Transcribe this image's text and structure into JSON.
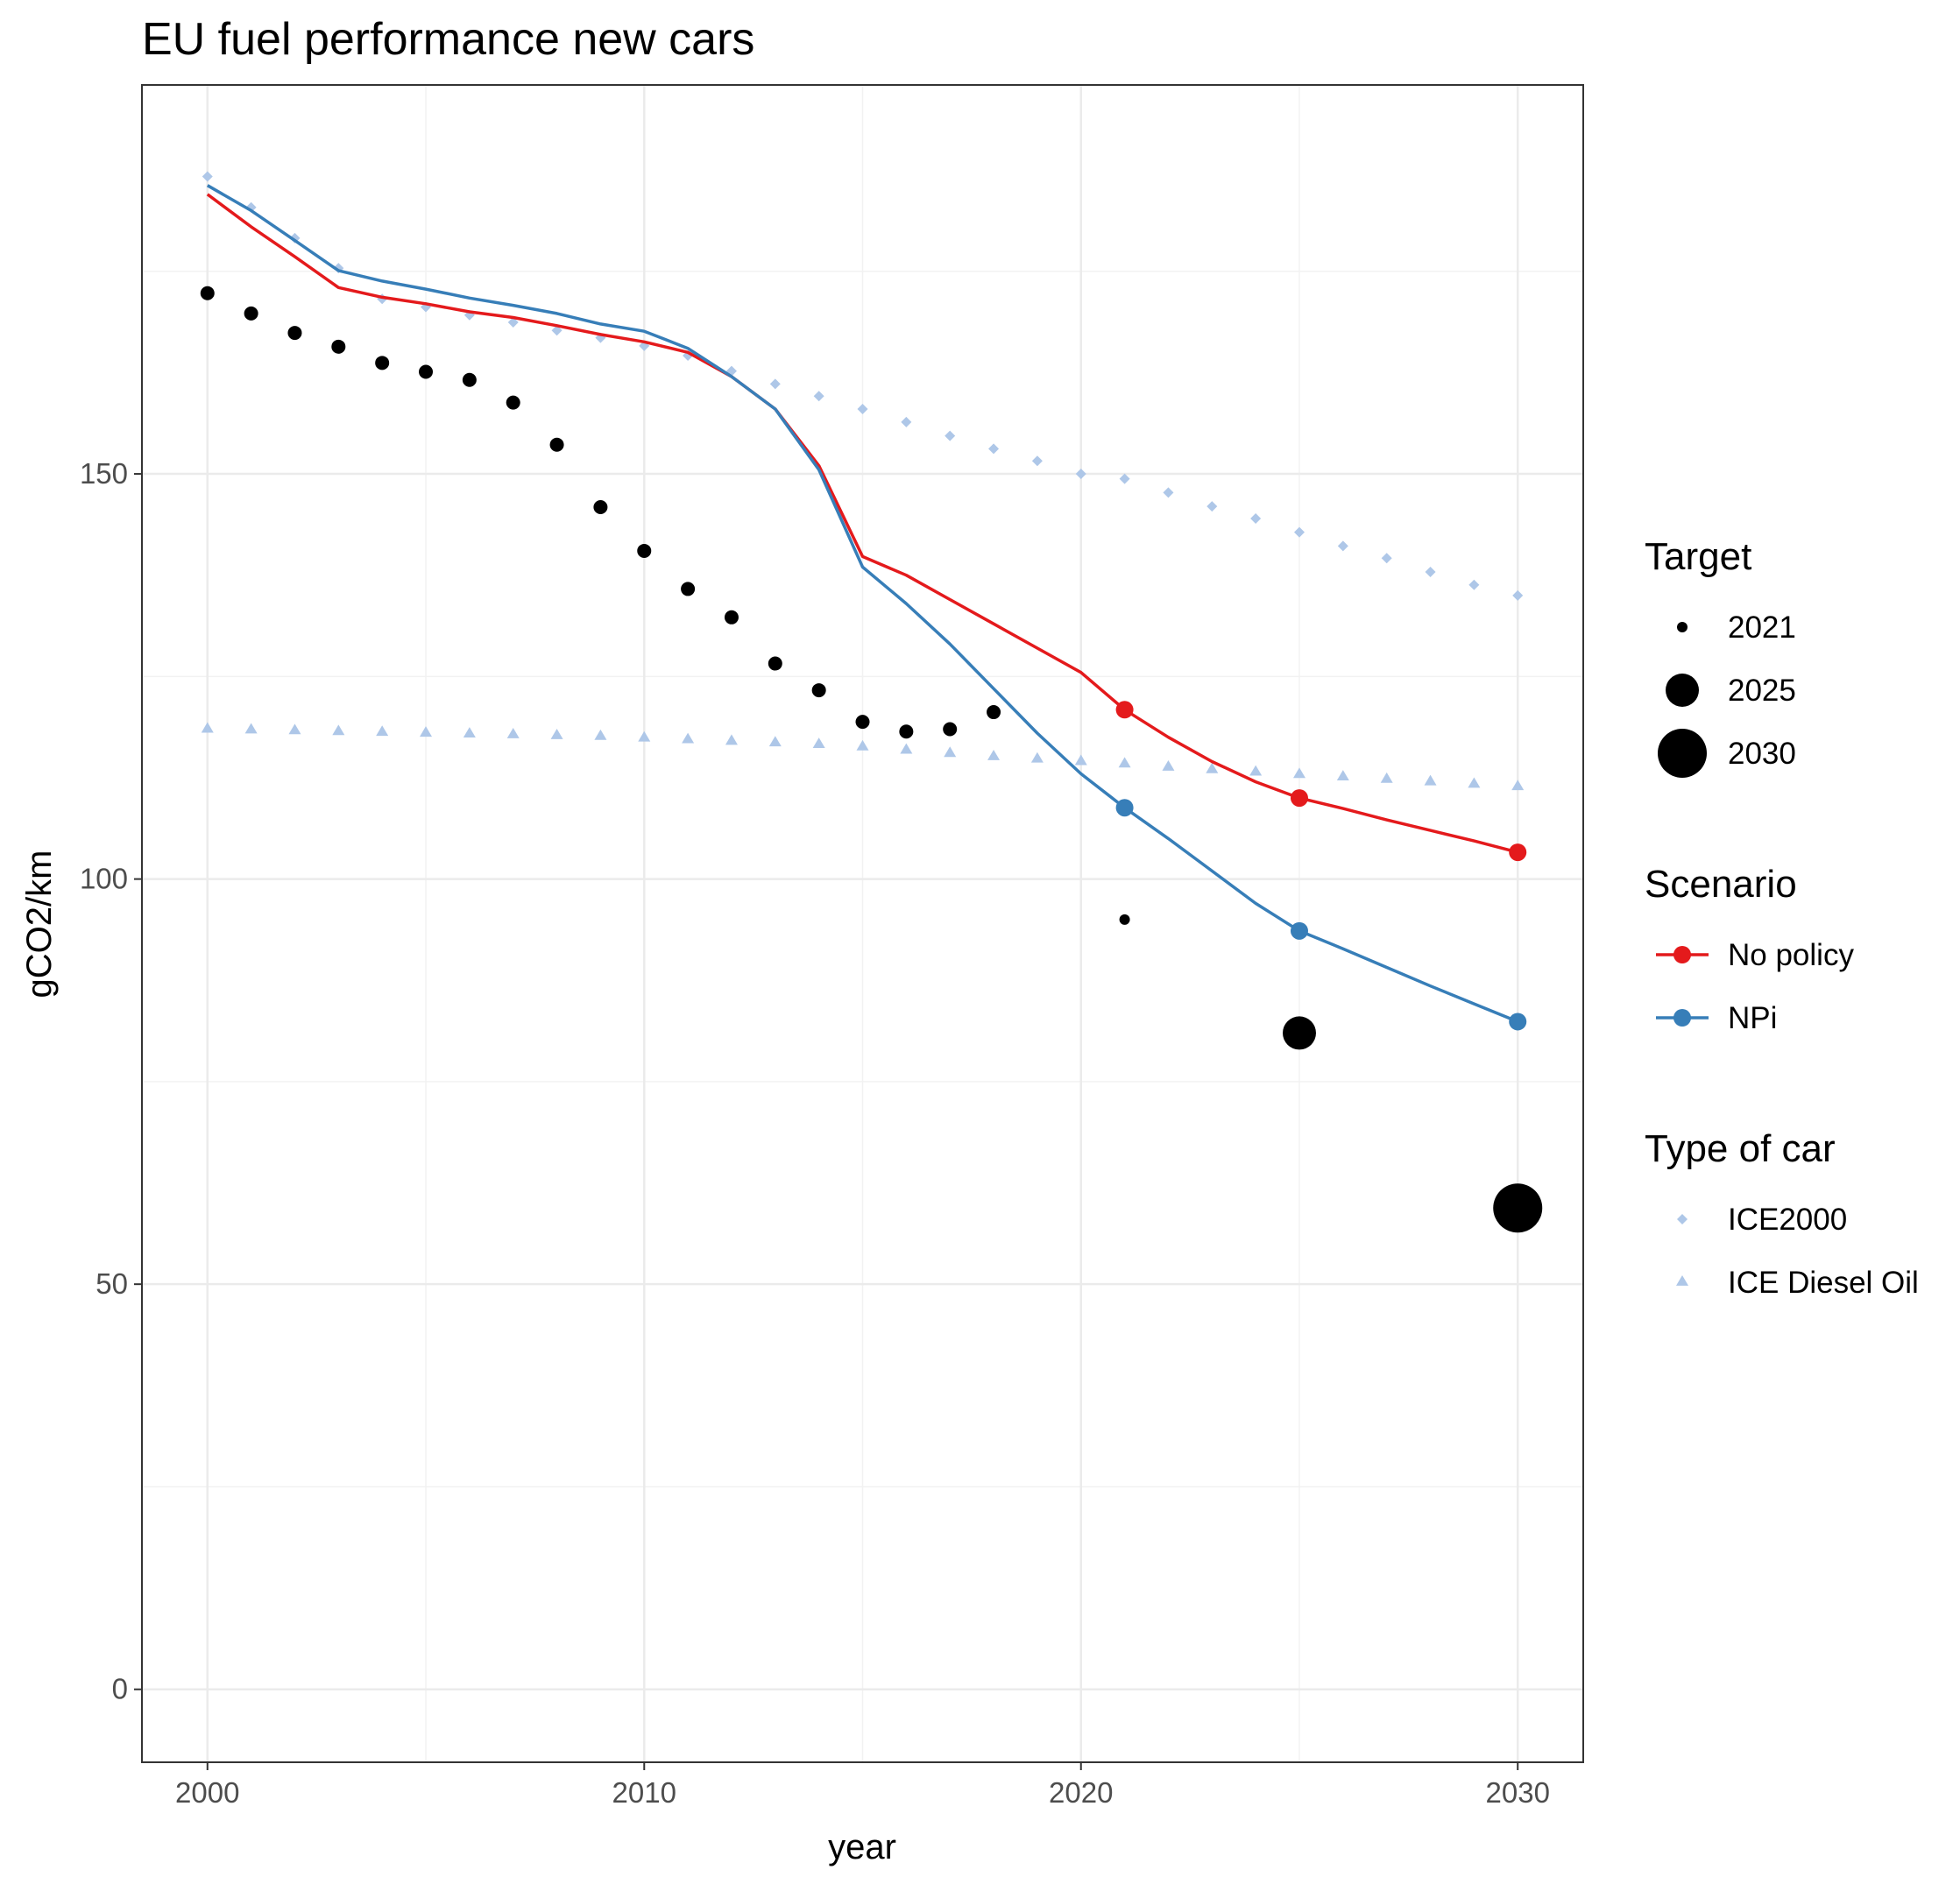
{
  "chart_data": {
    "type": "line",
    "title": "EU fuel performance new cars",
    "xlabel": "year",
    "ylabel": "gCO2/km",
    "xlim": [
      1998.5,
      2031.5
    ],
    "ylim": [
      -9,
      198
    ],
    "x_ticks": [
      2000,
      2010,
      2020,
      2030
    ],
    "y_ticks": [
      0,
      50,
      100,
      150
    ],
    "grid": true,
    "legend_position": "right",
    "lines": [
      {
        "name": "No policy",
        "color": "#e41a1c",
        "x": [
          2000,
          2001,
          2002,
          2003,
          2004,
          2005,
          2006,
          2007,
          2008,
          2009,
          2010,
          2011,
          2012,
          2013,
          2014,
          2015,
          2016,
          2017,
          2018,
          2019,
          2020,
          2021,
          2022,
          2023,
          2024,
          2025,
          2026,
          2027,
          2028,
          2029,
          2030
        ],
        "y": [
          184.5,
          180.5,
          176.8,
          173.0,
          171.8,
          171.0,
          170.0,
          169.3,
          168.3,
          167.2,
          166.3,
          165.0,
          162.0,
          158.0,
          151.0,
          139.8,
          137.5,
          134.5,
          131.5,
          128.5,
          125.5,
          120.9,
          117.5,
          114.5,
          112.0,
          110.0,
          108.7,
          107.3,
          106.0,
          104.7,
          103.3
        ],
        "markers": [
          {
            "x": 2021,
            "y": 120.9
          },
          {
            "x": 2025,
            "y": 110.0
          },
          {
            "x": 2030,
            "y": 103.3
          }
        ]
      },
      {
        "name": "NPi",
        "color": "#377eb8",
        "x": [
          2000,
          2001,
          2002,
          2003,
          2004,
          2005,
          2006,
          2007,
          2008,
          2009,
          2010,
          2011,
          2012,
          2013,
          2014,
          2015,
          2016,
          2017,
          2018,
          2019,
          2020,
          2021,
          2022,
          2023,
          2024,
          2025,
          2026,
          2027,
          2028,
          2029,
          2030
        ],
        "y": [
          185.6,
          182.5,
          178.8,
          175.1,
          173.8,
          172.8,
          171.7,
          170.8,
          169.8,
          168.5,
          167.6,
          165.5,
          162.0,
          158.0,
          150.5,
          138.5,
          134.0,
          129.0,
          123.5,
          118.0,
          113.0,
          108.8,
          105.0,
          101.0,
          97.0,
          93.6,
          91.4,
          89.1,
          86.8,
          84.6,
          82.4
        ],
        "markers": [
          {
            "x": 2021,
            "y": 108.8
          },
          {
            "x": 2025,
            "y": 93.6
          },
          {
            "x": 2030,
            "y": 82.4
          }
        ]
      }
    ],
    "historical_points": {
      "color": "#000000",
      "x": [
        2000,
        2001,
        2002,
        2003,
        2004,
        2005,
        2006,
        2007,
        2008,
        2009,
        2010,
        2011,
        2012,
        2013,
        2014,
        2015,
        2016,
        2017,
        2018
      ],
      "y": [
        172.3,
        169.8,
        167.4,
        165.7,
        163.7,
        162.6,
        161.6,
        158.8,
        153.6,
        145.9,
        140.5,
        135.8,
        132.3,
        126.6,
        123.3,
        119.4,
        118.2,
        118.5,
        120.6
      ]
    },
    "targets": [
      {
        "label": "2021",
        "x": 2021,
        "y": 95.0,
        "size": "small"
      },
      {
        "label": "2025",
        "x": 2025,
        "y": 81.0,
        "size": "medium"
      },
      {
        "label": "2030",
        "x": 2030,
        "y": 59.4,
        "size": "large"
      }
    ],
    "car_types": [
      {
        "name": "ICE2000",
        "shape": "diamond",
        "color": "#aec7e8",
        "x": [
          2000,
          2001,
          2002,
          2003,
          2004,
          2005,
          2006,
          2007,
          2008,
          2009,
          2010,
          2011,
          2012,
          2013,
          2014,
          2015,
          2016,
          2017,
          2018,
          2019,
          2020,
          2021,
          2022,
          2023,
          2024,
          2025,
          2026,
          2027,
          2028,
          2029,
          2030
        ],
        "y": [
          186.7,
          182.9,
          179.1,
          175.4,
          171.6,
          170.6,
          169.6,
          168.7,
          167.7,
          166.8,
          165.8,
          164.6,
          162.7,
          161.1,
          159.6,
          158.0,
          156.4,
          154.7,
          153.1,
          151.6,
          150.0,
          149.4,
          147.7,
          146.0,
          144.5,
          142.8,
          141.1,
          139.6,
          137.9,
          136.3,
          135.0
        ]
      },
      {
        "name": "ICE Diesel Oil",
        "shape": "triangle",
        "color": "#aec7e8",
        "x": [
          2000,
          2001,
          2002,
          2003,
          2004,
          2005,
          2006,
          2007,
          2008,
          2009,
          2010,
          2011,
          2012,
          2013,
          2014,
          2015,
          2016,
          2017,
          2018,
          2019,
          2020,
          2021,
          2022,
          2023,
          2024,
          2025,
          2026,
          2027,
          2028,
          2029,
          2030
        ],
        "y": [
          118.6,
          118.5,
          118.4,
          118.3,
          118.2,
          118.1,
          118.0,
          117.9,
          117.8,
          117.7,
          117.5,
          117.3,
          117.1,
          116.9,
          116.7,
          116.4,
          116.0,
          115.6,
          115.2,
          114.9,
          114.6,
          114.3,
          113.9,
          113.6,
          113.3,
          113.0,
          112.7,
          112.4,
          112.1,
          111.8,
          111.5
        ]
      }
    ],
    "legend": {
      "target_title": "Target",
      "target_items": [
        "2021",
        "2025",
        "2030"
      ],
      "scenario_title": "Scenario",
      "scenario_items": [
        "No policy",
        "NPi"
      ],
      "car_title": "Type of car",
      "car_items": [
        "ICE2000",
        "ICE Diesel Oil"
      ]
    }
  }
}
